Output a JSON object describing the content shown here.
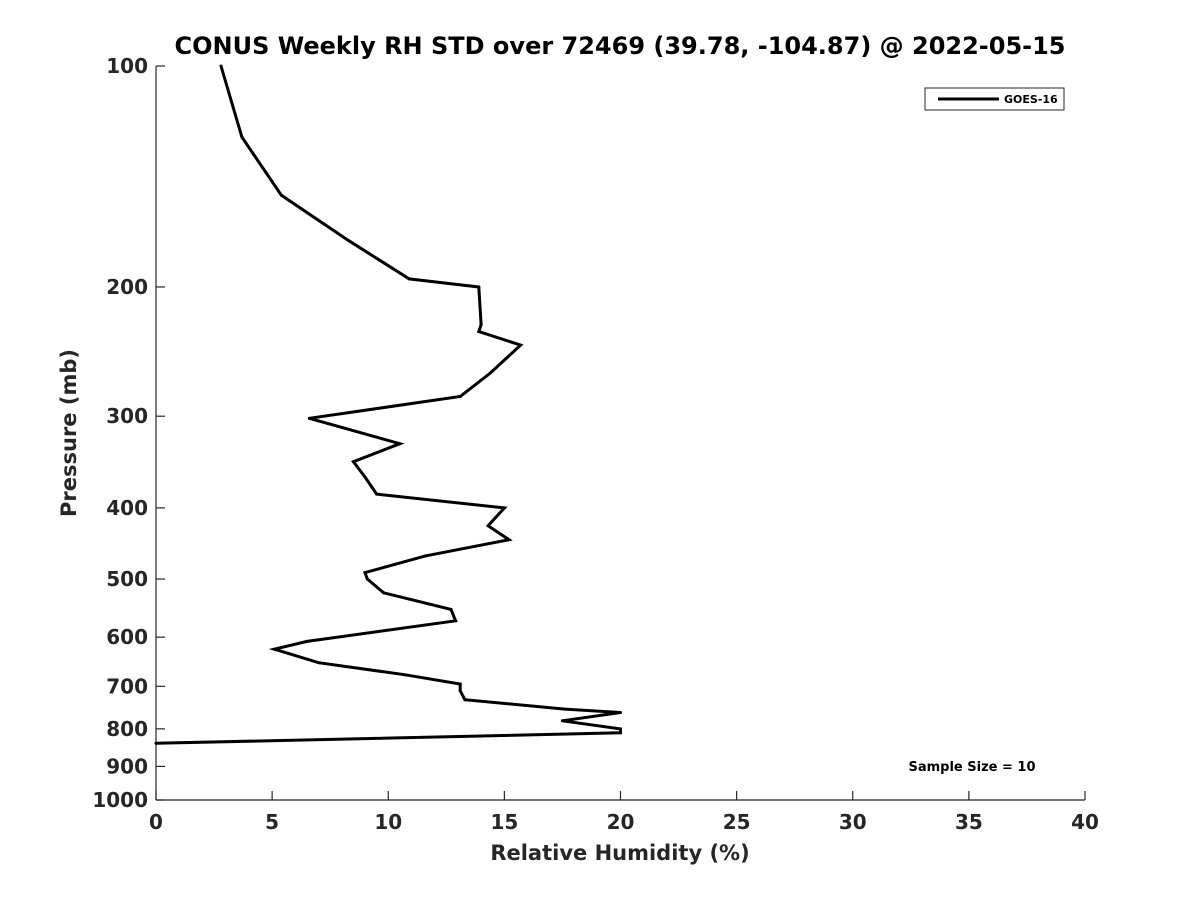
{
  "chart_data": {
    "type": "line",
    "title": "CONUS Weekly RH STD over 72469 (39.78, -104.87) @ 2022-05-15",
    "xlabel": "Relative Humidity (%)",
    "ylabel": "Pressure (mb)",
    "xlim": [
      0,
      40
    ],
    "ylim": [
      100,
      1000
    ],
    "yscale": "log",
    "y_reversed": true,
    "xticks": [
      0,
      5,
      10,
      15,
      20,
      25,
      30,
      35,
      40
    ],
    "yticks": [
      100,
      200,
      300,
      400,
      500,
      600,
      700,
      800,
      900,
      1000
    ],
    "legend_position": "top-right",
    "grid": false,
    "series": [
      {
        "name": "GOES-16",
        "color": "#000000",
        "x": [
          2.8,
          3.7,
          5.4,
          8.3,
          10.9,
          13.9,
          14.0,
          13.9,
          15.7,
          14.4,
          13.1,
          6.6,
          10.5,
          8.5,
          9.0,
          9.5,
          15.0,
          14.3,
          15.2,
          11.6,
          9.0,
          9.1,
          9.8,
          12.7,
          12.9,
          6.5,
          5.1,
          7.0,
          10.7,
          13.1,
          13.1,
          13.3,
          17.6,
          20.0,
          17.5,
          20.0,
          20.0,
          0.0
        ],
        "y": [
          100,
          125,
          150,
          173,
          195,
          200,
          225,
          230,
          240,
          262,
          282,
          302,
          327,
          346,
          363,
          383,
          400,
          423,
          442,
          465,
          490,
          500,
          522,
          550,
          570,
          608,
          623,
          650,
          675,
          695,
          710,
          730,
          752,
          760,
          780,
          800,
          810,
          837
        ]
      }
    ],
    "legend": {
      "entries": [
        "GOES-16"
      ]
    },
    "annotations": [
      "Sample Size = 10"
    ]
  }
}
